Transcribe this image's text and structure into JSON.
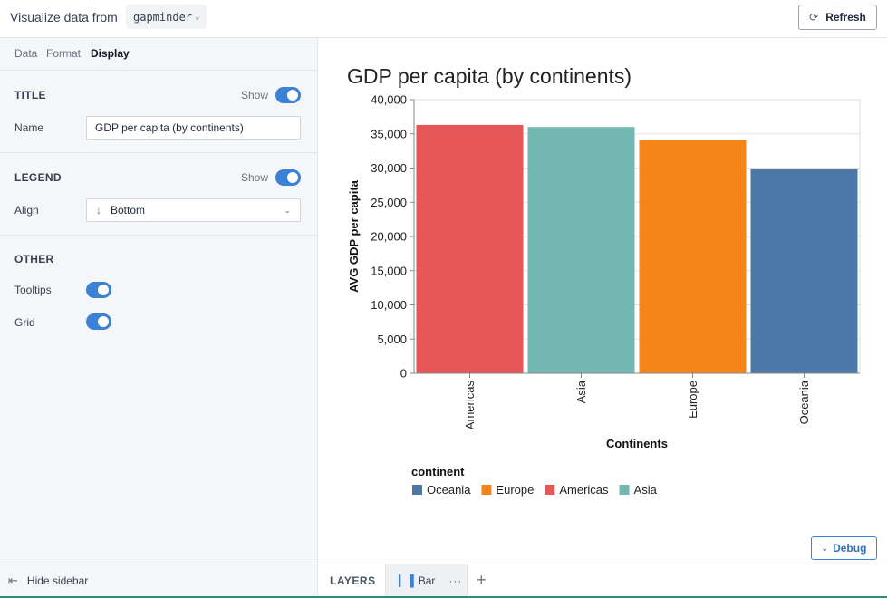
{
  "topbar": {
    "label": "Visualize data from",
    "datasource": "gapminder",
    "refresh_label": "Refresh"
  },
  "sidebar": {
    "tabs": [
      "Data",
      "Format",
      "Display"
    ],
    "active_tab": "Display",
    "title_section": {
      "heading": "TITLE",
      "show_label": "Show",
      "show_enabled": true,
      "name_label": "Name",
      "name_value": "GDP per capita (by continents)"
    },
    "legend_section": {
      "heading": "LEGEND",
      "show_label": "Show",
      "show_enabled": true,
      "align_label": "Align",
      "align_value": "Bottom"
    },
    "other_section": {
      "heading": "OTHER",
      "tooltips_label": "Tooltips",
      "tooltips_enabled": true,
      "grid_label": "Grid",
      "grid_enabled": true
    }
  },
  "bottombar": {
    "hide_sidebar_label": "Hide sidebar",
    "layers_label": "LAYERS",
    "layer_name": "Bar"
  },
  "debug_label": "Debug",
  "colors": {
    "accent": "#3b82d6",
    "Americas": "#e45756",
    "Asia": "#72b7b2",
    "Europe": "#f58518",
    "Oceania": "#4c78a8"
  },
  "chart_data": {
    "type": "bar",
    "title": "GDP per capita (by continents)",
    "xlabel": "Continents",
    "ylabel": "AVG GDP per capita",
    "categories": [
      "Americas",
      "Asia",
      "Europe",
      "Oceania"
    ],
    "values": [
      36300,
      36000,
      34100,
      29800
    ],
    "ylim": [
      0,
      40000
    ],
    "yticks": [
      0,
      5000,
      10000,
      15000,
      20000,
      25000,
      30000,
      35000,
      40000
    ],
    "grid": true,
    "legend": {
      "title": "continent",
      "placement": "bottom",
      "entries": [
        "Oceania",
        "Europe",
        "Americas",
        "Asia"
      ]
    }
  }
}
